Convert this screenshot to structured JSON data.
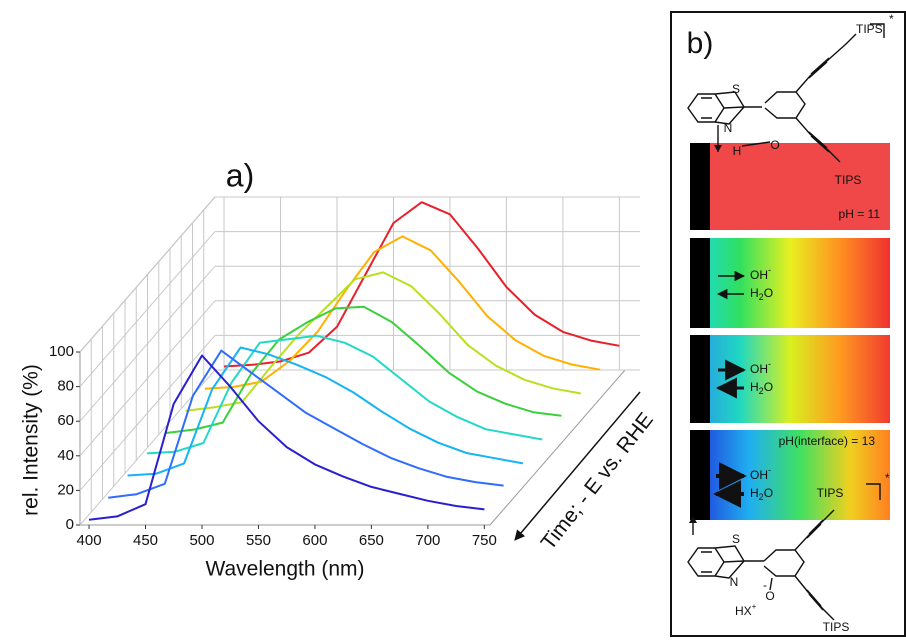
{
  "chart_data": {
    "type": "waterfall",
    "title": "a)",
    "xlabel": "Wavelength (nm)",
    "ylabel": "rel. Intensity (%)",
    "zlabel": "Time; - E vs. RHE",
    "x": [
      400,
      425,
      450,
      475,
      500,
      525,
      550,
      575,
      600,
      625,
      650,
      675,
      700,
      725,
      750
    ],
    "xlim": [
      392,
      755
    ],
    "xticks": [
      400,
      450,
      500,
      550,
      600,
      650,
      700,
      750
    ],
    "ylim": [
      0,
      100
    ],
    "yticks": [
      0,
      20,
      40,
      60,
      80,
      100
    ],
    "grid": true,
    "series": [
      {
        "color": "#2a1fd0",
        "values": [
          3,
          5,
          12,
          70,
          98,
          80,
          60,
          45,
          35,
          28,
          22,
          18,
          14,
          11,
          9
        ]
      },
      {
        "color": "#2f6cff",
        "values": [
          3,
          5,
          11,
          62,
          88,
          76,
          64,
          52,
          43,
          34,
          26,
          20,
          15,
          12,
          10
        ]
      },
      {
        "color": "#15b4f5",
        "values": [
          3,
          4,
          10,
          53,
          77,
          73,
          67,
          60,
          51,
          40,
          30,
          22,
          16,
          13,
          10
        ]
      },
      {
        "color": "#22d8c8",
        "values": [
          3,
          4,
          9,
          44,
          67,
          69,
          71,
          67,
          59,
          46,
          33,
          24,
          17,
          14,
          11
        ]
      },
      {
        "color": "#3ad03a",
        "values": [
          2,
          4,
          8,
          36,
          56,
          66,
          74,
          75,
          66,
          52,
          37,
          26,
          19,
          14,
          12
        ]
      },
      {
        "color": "#b8e020",
        "values": [
          2,
          4,
          7,
          27,
          46,
          62,
          78,
          82,
          74,
          58,
          40,
          28,
          20,
          15,
          12
        ]
      },
      {
        "color": "#ffb000",
        "values": [
          2,
          3,
          6,
          18,
          35,
          59,
          81,
          90,
          82,
          64,
          44,
          30,
          21,
          16,
          13
        ]
      },
      {
        "color": "#e8202a",
        "values": [
          2,
          3,
          5,
          10,
          25,
          55,
          85,
          97,
          90,
          70,
          48,
          32,
          22,
          17,
          14
        ]
      }
    ]
  },
  "panel_b": {
    "label": "b)",
    "top": {
      "s": "S",
      "n": "N",
      "h": "H",
      "o": "O",
      "tips1": "TIPS",
      "tips2": "TIPS",
      "star": "*"
    },
    "strips": [
      {
        "note": "pH = 11"
      },
      {
        "oh": "OH",
        "oh_charge": "-",
        "h": "H",
        "h_sub": "2",
        "o": "O"
      },
      {
        "oh": "OH",
        "oh_charge": "-",
        "h": "H",
        "h_sub": "2",
        "o": "O"
      },
      {
        "note": "pH(interface) = 13",
        "oh": "OH",
        "oh_charge": "-",
        "h": "H",
        "h_sub": "2",
        "o": "O"
      }
    ],
    "bottom": {
      "s": "S",
      "n": "N",
      "o": "O",
      "o_charge": "-",
      "hx": "HX",
      "hx_charge": "+",
      "tips1": "TIPS",
      "tips2": "TIPS",
      "star": "*"
    }
  }
}
